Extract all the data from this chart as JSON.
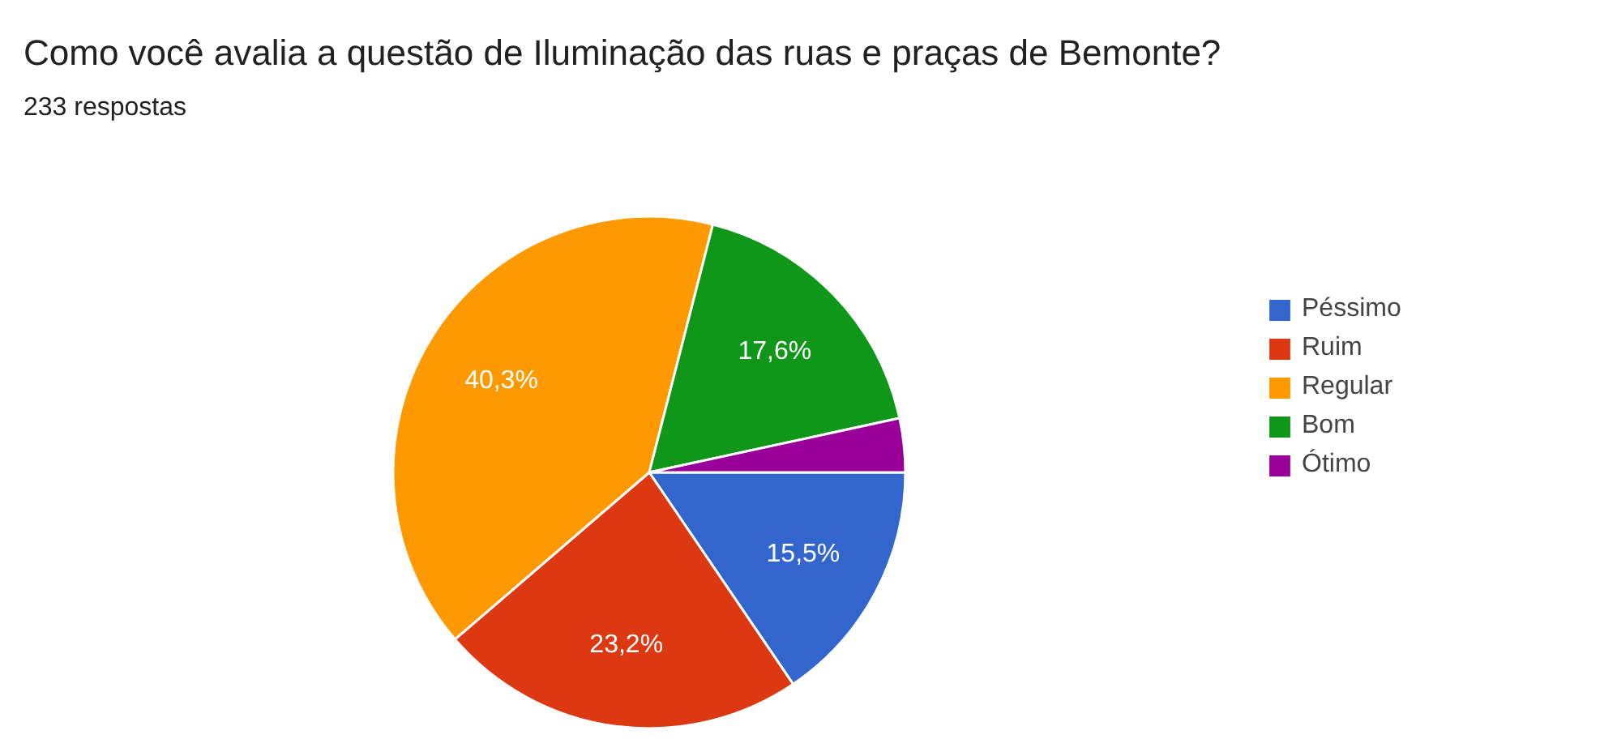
{
  "chart_data": {
    "type": "pie",
    "title": "Como você avalia a questão de Iluminação  das ruas e praças de Bemonte?",
    "subtitle": "233 respostas",
    "categories": [
      "Péssimo",
      "Ruim",
      "Regular",
      "Bom",
      "Ótimo"
    ],
    "values": [
      15.5,
      23.2,
      40.3,
      17.6,
      3.4
    ],
    "colors": [
      "#3366cc",
      "#dc3912",
      "#ff9900",
      "#109618",
      "#990099"
    ],
    "value_labels": [
      "15,5%",
      "23,2%",
      "40,3%",
      "17,6%",
      null
    ],
    "legend": "right"
  }
}
